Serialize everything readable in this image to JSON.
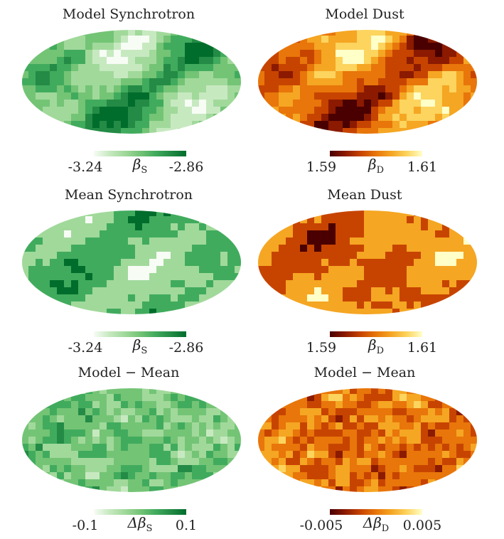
{
  "panels": [
    {
      "title": "Model Synchrotron",
      "cmap": "green",
      "seed": 11,
      "smooth": 1.0,
      "levels": 0,
      "cbar": {
        "min": "-3.24",
        "max": "-2.86",
        "prefix": "",
        "symbol": "β",
        "sub": "S"
      }
    },
    {
      "title": "Model Dust",
      "cmap": "heat",
      "seed": 23,
      "smooth": 1.0,
      "levels": 0,
      "cbar": {
        "min": "1.59",
        "max": "1.61",
        "prefix": "",
        "symbol": "β",
        "sub": "D"
      }
    },
    {
      "title": "Mean Synchrotron",
      "cmap": "green",
      "seed": 37,
      "smooth": 0.9,
      "levels": 3,
      "cbar": {
        "min": "-3.24",
        "max": "-2.86",
        "prefix": "",
        "symbol": "β",
        "sub": "S"
      }
    },
    {
      "title": "Mean Dust",
      "cmap": "heat",
      "seed": 41,
      "smooth": 0.9,
      "levels": 3,
      "cbar": {
        "min": "1.59",
        "max": "1.61",
        "prefix": "",
        "symbol": "β",
        "sub": "D"
      }
    },
    {
      "title": "Model − Mean",
      "cmap": "green",
      "seed": 53,
      "smooth": 0.25,
      "levels": 0,
      "cbar": {
        "min": "-0.1",
        "max": "0.1",
        "prefix": "Δ",
        "symbol": "β",
        "sub": "S"
      }
    },
    {
      "title": "Model − Mean",
      "cmap": "heat",
      "seed": 67,
      "smooth": 0.25,
      "levels": 0,
      "cbar": {
        "min": "-0.005",
        "max": "0.005",
        "prefix": "Δ",
        "symbol": "β",
        "sub": "D"
      }
    }
  ],
  "colormaps": {
    "green": [
      "#f7fcf5",
      "#c7e9c0",
      "#a1d99b",
      "#74c476",
      "#41ab5d",
      "#238b45",
      "#006d2c"
    ],
    "heat": [
      "#4a0000",
      "#8b1a00",
      "#c74400",
      "#e8760a",
      "#f5a623",
      "#fcd45e",
      "#ffffc8"
    ]
  }
}
